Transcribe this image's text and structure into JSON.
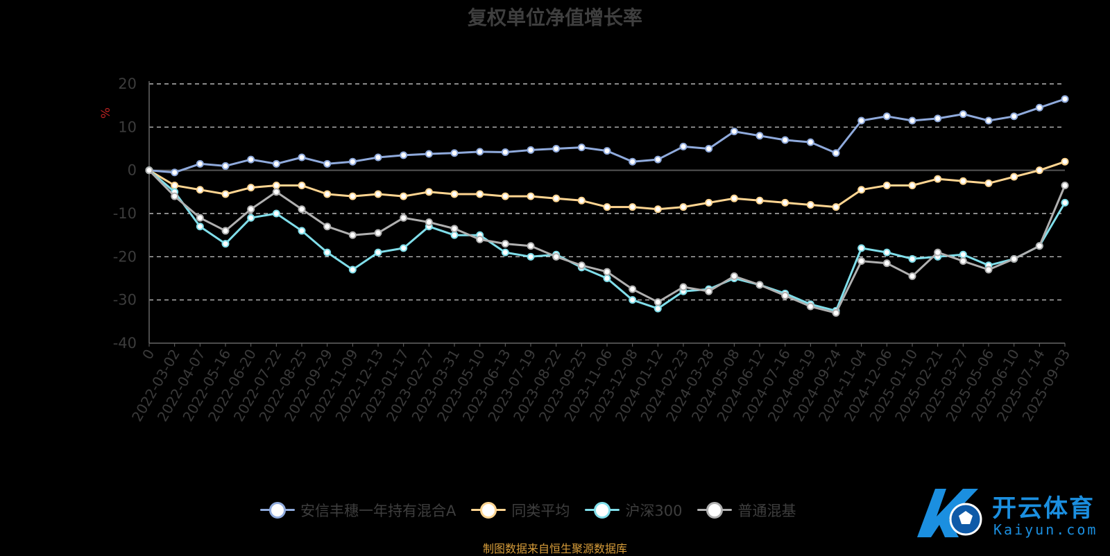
{
  "chart_data": {
    "type": "line",
    "title": "复权单位净值增长率",
    "ylabel": "%",
    "xlabel": "",
    "ylim": [
      -40,
      20
    ],
    "yticks": [
      20,
      10,
      0,
      -10,
      -20,
      -30,
      -40
    ],
    "grid": true,
    "legend_position": "bottom",
    "categories": [
      "0",
      "2022-03-02",
      "2022-04-07",
      "2022-05-16",
      "2022-06-20",
      "2022-07-22",
      "2022-08-25",
      "2022-09-29",
      "2022-11-09",
      "2022-12-13",
      "2023-01-17",
      "2023-02-27",
      "2023-03-31",
      "2023-05-10",
      "2023-06-13",
      "2023-07-19",
      "2023-08-22",
      "2023-09-25",
      "2023-11-06",
      "2023-12-08",
      "2024-01-12",
      "2024-02-23",
      "2024-03-28",
      "2024-05-08",
      "2024-06-12",
      "2024-07-16",
      "2024-08-19",
      "2024-09-24",
      "2024-11-04",
      "2024-12-06",
      "2025-01-10",
      "2025-02-21",
      "2025-03-27",
      "2025-05-06",
      "2025-06-10",
      "2025-07-14",
      "2025-09-03"
    ],
    "series": [
      {
        "name": "安信丰穗一年持有混合A",
        "color": "#8faadc",
        "values": [
          0,
          -0.5,
          1.5,
          1.0,
          2.5,
          1.5,
          3.0,
          1.5,
          2.0,
          3.0,
          3.5,
          3.8,
          4.0,
          4.3,
          4.2,
          4.7,
          5.0,
          5.3,
          4.5,
          2.0,
          2.5,
          5.5,
          5.0,
          9.0,
          8.0,
          7.0,
          6.5,
          4.0,
          11.5,
          12.5,
          11.5,
          12.0,
          13.0,
          11.5,
          12.5,
          14.5,
          16.5
        ]
      },
      {
        "name": "同类平均",
        "color": "#ffd591",
        "values": [
          0,
          -3.5,
          -4.5,
          -5.5,
          -4.0,
          -3.5,
          -3.5,
          -5.5,
          -6.0,
          -5.5,
          -6.0,
          -5.0,
          -5.5,
          -5.5,
          -6.0,
          -6.0,
          -6.5,
          -7.0,
          -8.5,
          -8.5,
          -9.0,
          -8.5,
          -7.5,
          -6.5,
          -7.0,
          -7.5,
          -8.0,
          -8.5,
          -4.5,
          -3.5,
          -3.5,
          -2.0,
          -2.5,
          -3.0,
          -1.5,
          0.0,
          2.0
        ]
      },
      {
        "name": "沪深300",
        "color": "#80deea",
        "values": [
          0,
          -5.0,
          -13.0,
          -17.0,
          -11.0,
          -10.0,
          -14.0,
          -19.0,
          -23.0,
          -19.0,
          -18.0,
          -13.0,
          -15.0,
          -15.0,
          -19.0,
          -20.0,
          -19.5,
          -22.5,
          -25.0,
          -30.0,
          -32.0,
          -28.0,
          -27.5,
          -25.0,
          -26.5,
          -28.5,
          -31.0,
          -32.5,
          -18.0,
          -19.0,
          -20.5,
          -20.0,
          -19.5,
          -22.0,
          -20.5,
          -17.5,
          -7.5
        ]
      },
      {
        "name": "普通混基",
        "color": "#b0b0b0",
        "values": [
          0,
          -6.0,
          -11.0,
          -14.0,
          -9.0,
          -5.0,
          -9.0,
          -13.0,
          -15.0,
          -14.5,
          -11.0,
          -12.0,
          -13.5,
          -16.0,
          -17.0,
          -17.5,
          -20.0,
          -22.0,
          -23.5,
          -27.5,
          -30.5,
          -27.0,
          -28.0,
          -24.5,
          -26.5,
          -29.0,
          -31.5,
          -33.0,
          -21.0,
          -21.5,
          -24.5,
          -19.0,
          -21.0,
          -23.0,
          -20.5,
          -17.5,
          -3.5
        ]
      }
    ]
  },
  "source_note": "制图数据来自恒生聚源数据库",
  "watermark": {
    "name": "开云体育",
    "url": "Kaiyun.com"
  }
}
